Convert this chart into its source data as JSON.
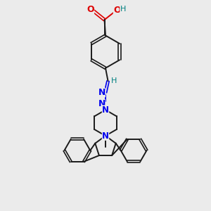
{
  "bg_color": "#ebebeb",
  "bond_color": "#1a1a1a",
  "N_color": "#0000ee",
  "O_color": "#dd0000",
  "H_color": "#008080",
  "figsize": [
    3.0,
    3.0
  ],
  "dpi": 100,
  "xlim": [
    0,
    10
  ],
  "ylim": [
    0,
    10
  ]
}
